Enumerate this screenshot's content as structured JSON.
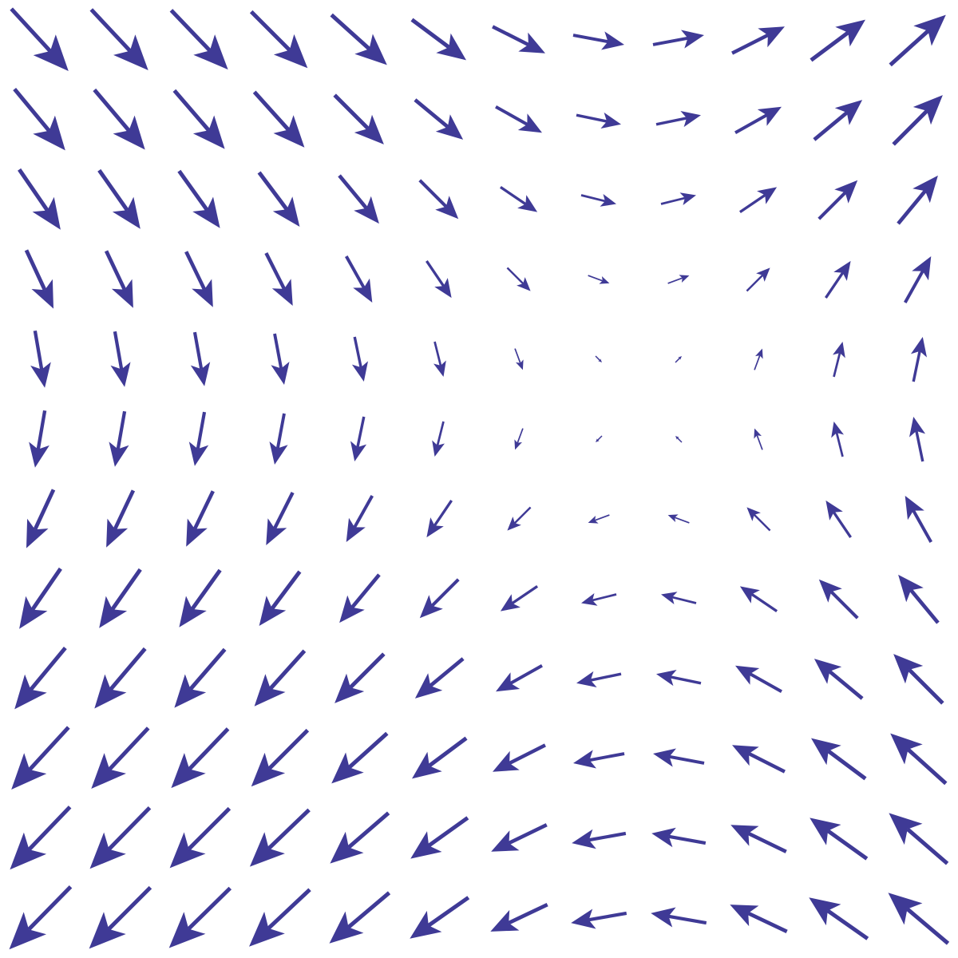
{
  "chart_data": {
    "type": "quiver",
    "title": "",
    "xlabel": "",
    "ylabel": "",
    "axes_visible": false,
    "grid": false,
    "color": "#3f3a96",
    "x": [
      -7.5,
      -6.5,
      -5.5,
      -4.5,
      -3.5,
      -2.5,
      -1.5,
      -0.5,
      0.5,
      1.5,
      2.5,
      3.5
    ],
    "y": [
      4.5,
      3.5,
      2.5,
      1.5,
      0.5,
      -0.5,
      -1.5,
      -2.5,
      -3.5,
      -4.5,
      -5.5,
      -6.5
    ],
    "u": [
      [
        0.91,
        0.91,
        0.91,
        0.91,
        0.91,
        0.91,
        0.91,
        0.91,
        0.91,
        0.91,
        0.91,
        0.91
      ],
      [
        0.82,
        0.82,
        0.82,
        0.82,
        0.82,
        0.82,
        0.82,
        0.82,
        0.82,
        0.82,
        0.82,
        0.82
      ],
      [
        0.68,
        0.68,
        0.68,
        0.68,
        0.68,
        0.68,
        0.68,
        0.68,
        0.68,
        0.68,
        0.68,
        0.68
      ],
      [
        0.46,
        0.46,
        0.46,
        0.46,
        0.46,
        0.46,
        0.46,
        0.46,
        0.46,
        0.46,
        0.46,
        0.46
      ],
      [
        0.17,
        0.17,
        0.17,
        0.17,
        0.17,
        0.17,
        0.17,
        0.17,
        0.17,
        0.17,
        0.17,
        0.17
      ],
      [
        -0.17,
        -0.17,
        -0.17,
        -0.17,
        -0.17,
        -0.17,
        -0.17,
        -0.17,
        -0.17,
        -0.17,
        -0.17,
        -0.17
      ],
      [
        -0.46,
        -0.46,
        -0.46,
        -0.46,
        -0.46,
        -0.46,
        -0.46,
        -0.46,
        -0.46,
        -0.46,
        -0.46,
        -0.46
      ],
      [
        -0.68,
        -0.68,
        -0.68,
        -0.68,
        -0.68,
        -0.68,
        -0.68,
        -0.68,
        -0.68,
        -0.68,
        -0.68,
        -0.68
      ],
      [
        -0.82,
        -0.82,
        -0.82,
        -0.82,
        -0.82,
        -0.82,
        -0.82,
        -0.82,
        -0.82,
        -0.82,
        -0.82,
        -0.82
      ],
      [
        -0.91,
        -0.91,
        -0.91,
        -0.91,
        -0.91,
        -0.91,
        -0.91,
        -0.91,
        -0.91,
        -0.91,
        -0.91,
        -0.91
      ],
      [
        -0.95,
        -0.95,
        -0.95,
        -0.95,
        -0.95,
        -0.95,
        -0.95,
        -0.95,
        -0.95,
        -0.95,
        -0.95,
        -0.95
      ],
      [
        -0.97,
        -0.97,
        -0.97,
        -0.97,
        -0.97,
        -0.97,
        -0.97,
        -0.97,
        -0.97,
        -0.97,
        -0.97,
        -0.97
      ]
    ],
    "v": [
      [
        -0.99,
        -0.97,
        -0.95,
        -0.91,
        -0.82,
        -0.68,
        -0.46,
        -0.17,
        0.17,
        0.46,
        0.68,
        0.82
      ],
      [
        -0.99,
        -0.97,
        -0.95,
        -0.91,
        -0.82,
        -0.68,
        -0.46,
        -0.17,
        0.17,
        0.46,
        0.68,
        0.82
      ],
      [
        -0.99,
        -0.97,
        -0.95,
        -0.91,
        -0.82,
        -0.68,
        -0.46,
        -0.17,
        0.17,
        0.46,
        0.68,
        0.82
      ],
      [
        -0.99,
        -0.97,
        -0.95,
        -0.91,
        -0.82,
        -0.68,
        -0.46,
        -0.17,
        0.17,
        0.46,
        0.68,
        0.82
      ],
      [
        -0.99,
        -0.97,
        -0.95,
        -0.91,
        -0.82,
        -0.68,
        -0.46,
        -0.17,
        0.17,
        0.46,
        0.68,
        0.82
      ],
      [
        -0.99,
        -0.97,
        -0.95,
        -0.91,
        -0.82,
        -0.68,
        -0.46,
        -0.17,
        0.17,
        0.46,
        0.68,
        0.82
      ],
      [
        -0.99,
        -0.97,
        -0.95,
        -0.91,
        -0.82,
        -0.68,
        -0.46,
        -0.17,
        0.17,
        0.46,
        0.68,
        0.82
      ],
      [
        -0.99,
        -0.97,
        -0.95,
        -0.91,
        -0.82,
        -0.68,
        -0.46,
        -0.17,
        0.17,
        0.46,
        0.68,
        0.82
      ],
      [
        -0.99,
        -0.97,
        -0.95,
        -0.91,
        -0.82,
        -0.68,
        -0.46,
        -0.17,
        0.17,
        0.46,
        0.68,
        0.82
      ],
      [
        -0.99,
        -0.97,
        -0.95,
        -0.91,
        -0.82,
        -0.68,
        -0.46,
        -0.17,
        0.17,
        0.46,
        0.68,
        0.82
      ],
      [
        -0.99,
        -0.97,
        -0.95,
        -0.91,
        -0.82,
        -0.68,
        -0.46,
        -0.17,
        0.17,
        0.46,
        0.68,
        0.82
      ],
      [
        -0.99,
        -0.97,
        -0.95,
        -0.91,
        -0.82,
        -0.68,
        -0.46,
        -0.17,
        0.17,
        0.46,
        0.68,
        0.82
      ]
    ]
  }
}
